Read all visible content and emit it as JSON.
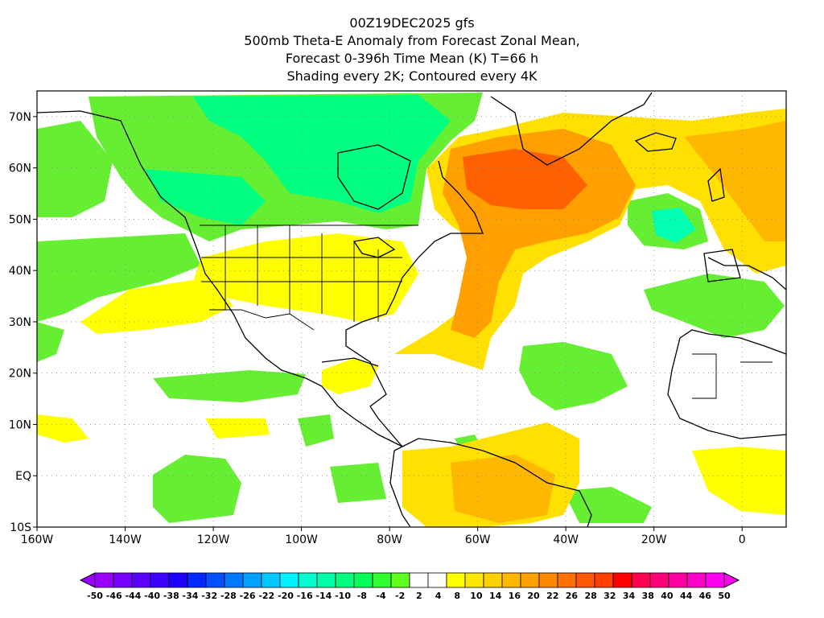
{
  "header": {
    "line1": "00Z19DEC2025 gfs",
    "line2": "500mb Theta-E Anomaly from Forecast Zonal Mean,",
    "line3": "Forecast 0-396h Time Mean (K) T=66 h",
    "line4": "Shading every 2K; Contoured every 4K"
  },
  "map": {
    "lon_range": [
      -160,
      10
    ],
    "lat_range": [
      -10,
      75
    ],
    "lon_ticks": [
      "160W",
      "140W",
      "120W",
      "100W",
      "80W",
      "60W",
      "40W",
      "20W",
      "0"
    ],
    "lat_ticks": [
      "70N",
      "60N",
      "50N",
      "40N",
      "30N",
      "20N",
      "10N",
      "EQ",
      "10S"
    ]
  },
  "colorbar": {
    "labels": [
      "-50",
      "-46",
      "-44",
      "-40",
      "-38",
      "-34",
      "-32",
      "-28",
      "-26",
      "-22",
      "-20",
      "-16",
      "-14",
      "-10",
      "-8",
      "-4",
      "-2",
      "2",
      "4",
      "8",
      "10",
      "14",
      "16",
      "20",
      "22",
      "26",
      "28",
      "32",
      "34",
      "38",
      "40",
      "44",
      "46",
      "50"
    ],
    "colors": [
      "#9a00ff",
      "#7800ff",
      "#5a00ff",
      "#3c00ff",
      "#1e00ff",
      "#0028ff",
      "#0050ff",
      "#0078ff",
      "#00a0ff",
      "#00c8ff",
      "#00f0ff",
      "#00ffd0",
      "#00ffa8",
      "#00ff80",
      "#00ff58",
      "#30ff30",
      "#60ff20",
      "#ffffff",
      "#ffffff",
      "#ffff00",
      "#ffe800",
      "#ffd000",
      "#ffb800",
      "#ffa000",
      "#ff8800",
      "#ff7000",
      "#ff5800",
      "#ff4000",
      "#ff0000",
      "#ff0050",
      "#ff0078",
      "#ff00a0",
      "#ff00c8",
      "#ff00f0"
    ]
  }
}
